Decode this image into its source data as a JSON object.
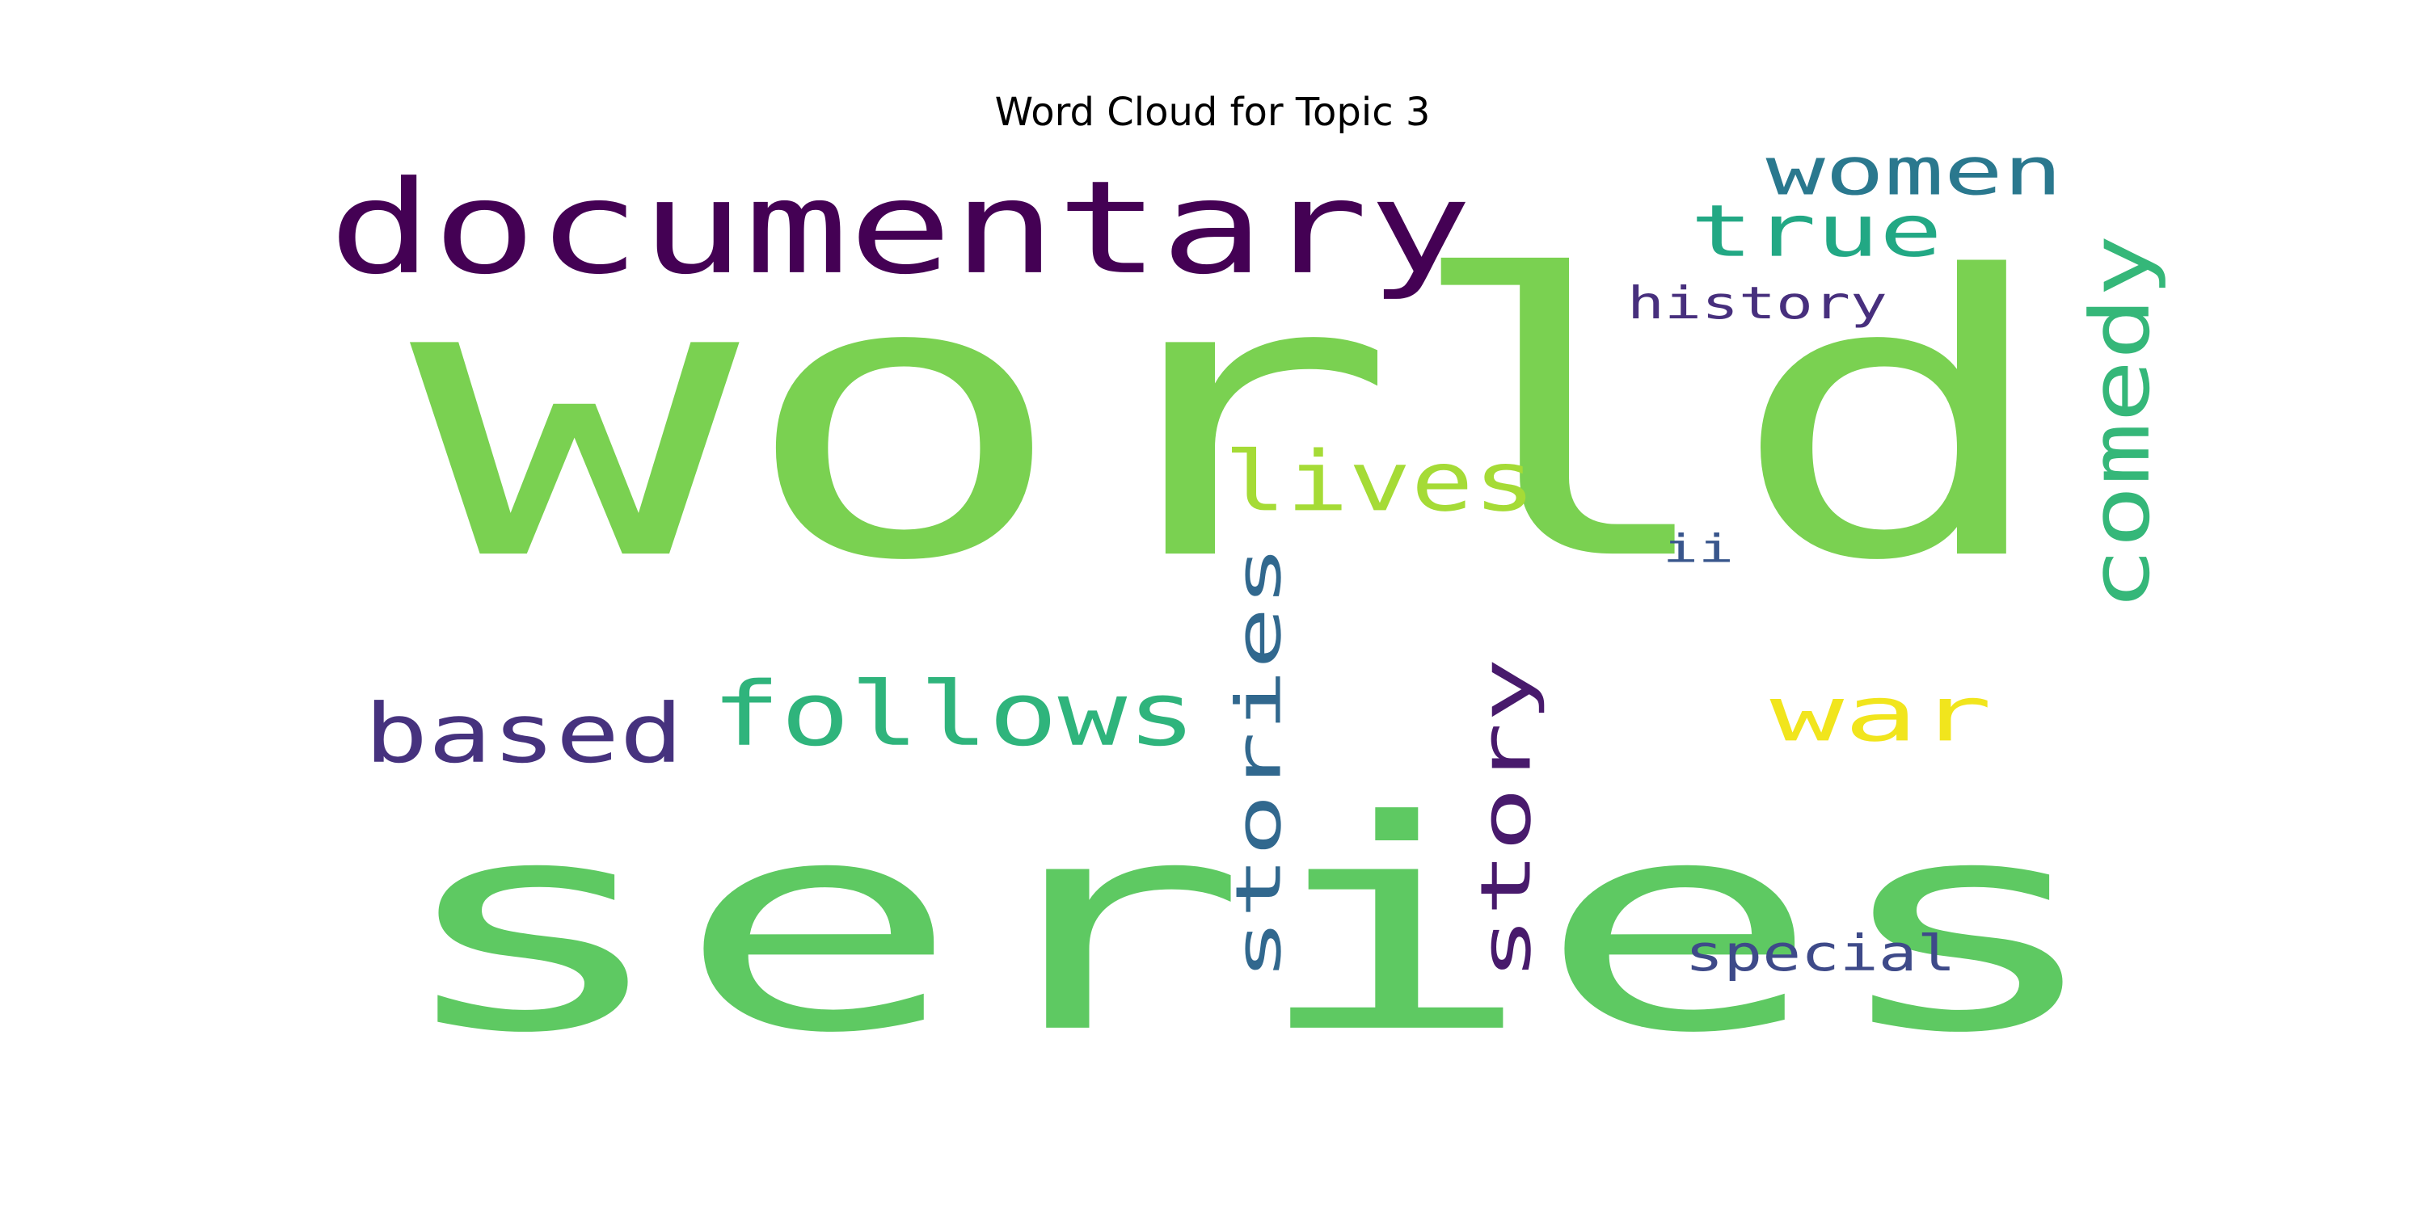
{
  "chart_data": {
    "type": "wordcloud",
    "title": "Word Cloud for Topic 3",
    "colormap": "viridis",
    "background": "#ffffff",
    "words": [
      {
        "text": "world",
        "color": "#7ad151"
      },
      {
        "text": "series",
        "color": "#5ec962"
      },
      {
        "text": "documentary",
        "color": "#440154"
      },
      {
        "text": "follows",
        "color": "#2fb47c"
      },
      {
        "text": "lives",
        "color": "#a5db36"
      },
      {
        "text": "war",
        "color": "#f1e51d"
      },
      {
        "text": "based",
        "color": "#46327e"
      },
      {
        "text": "true",
        "color": "#22a884"
      },
      {
        "text": "women",
        "color": "#2a788e"
      },
      {
        "text": "comedy",
        "color": "#35b779"
      },
      {
        "text": "stories",
        "color": "#31688e"
      },
      {
        "text": "story",
        "color": "#481a6c"
      },
      {
        "text": "history",
        "color": "#472f7d"
      },
      {
        "text": "special",
        "color": "#3e4a89"
      },
      {
        "text": "ii",
        "color": "#39568c"
      }
    ]
  }
}
